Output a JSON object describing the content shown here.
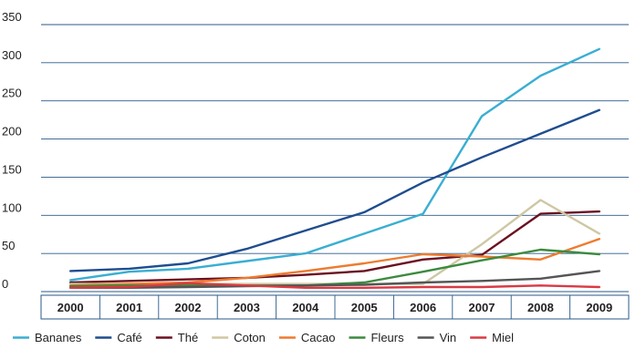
{
  "chart_data": {
    "type": "line",
    "title": "",
    "xlabel": "",
    "ylabel": "",
    "x": [
      "2000",
      "2001",
      "2002",
      "2003",
      "2004",
      "2005",
      "2006",
      "2007",
      "2008",
      "2009"
    ],
    "ylim": [
      0,
      350
    ],
    "yticks": [
      0,
      50,
      100,
      150,
      200,
      250,
      300,
      350
    ],
    "grid": true,
    "legend_position": "bottom",
    "series": [
      {
        "name": "Bananes",
        "color": "#3aaed2",
        "values": [
          15,
          26,
          30,
          40,
          50,
          76,
          102,
          230,
          283,
          318
        ]
      },
      {
        "name": "Café",
        "color": "#1f4d8f",
        "values": [
          27,
          30,
          37,
          56,
          80,
          104,
          143,
          176,
          207,
          238
        ]
      },
      {
        "name": "Thé",
        "color": "#6b1020",
        "values": [
          12,
          14,
          16,
          18,
          22,
          27,
          42,
          48,
          102,
          105
        ]
      },
      {
        "name": "Coton",
        "color": "#cfc7a3",
        "values": [
          10,
          10,
          10,
          10,
          10,
          10,
          10,
          62,
          120,
          76
        ]
      },
      {
        "name": "Cacao",
        "color": "#ee7b2f",
        "values": [
          8,
          10,
          12,
          18,
          27,
          37,
          49,
          46,
          42,
          69
        ]
      },
      {
        "name": "Fleurs",
        "color": "#3b8a3e",
        "values": [
          7,
          8,
          8,
          8,
          8,
          12,
          26,
          41,
          55,
          49
        ]
      },
      {
        "name": "Vin",
        "color": "#555555",
        "values": [
          5,
          5,
          6,
          7,
          8,
          9,
          12,
          14,
          17,
          27
        ]
      },
      {
        "name": "Miel",
        "color": "#d93a44",
        "values": [
          5,
          6,
          11,
          8,
          5,
          5,
          6,
          6,
          8,
          6
        ]
      }
    ]
  }
}
